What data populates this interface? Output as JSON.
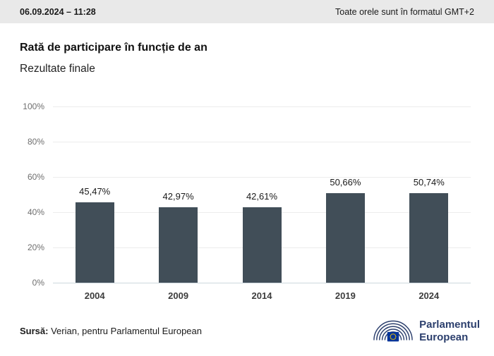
{
  "topbar": {
    "timestamp": "06.09.2024 – 11:28",
    "timezone_note": "Toate orele sunt în formatul GMT+2"
  },
  "title": "Rată de participare în funcție de an",
  "subtitle": "Rezultate finale",
  "chart_data": {
    "type": "bar",
    "title": "Rată de participare în funcție de an",
    "subtitle": "Rezultate finale",
    "categories": [
      "2004",
      "2009",
      "2014",
      "2019",
      "2024"
    ],
    "values": [
      45.47,
      42.97,
      42.61,
      50.66,
      50.74
    ],
    "value_labels": [
      "45,47%",
      "42,97%",
      "42,61%",
      "50,66%",
      "50,74%"
    ],
    "xlabel": "",
    "ylabel": "",
    "ylim": [
      0,
      100
    ],
    "yticks": [
      0,
      20,
      40,
      60,
      80,
      100
    ],
    "ytick_labels": [
      "0%",
      "20%",
      "40%",
      "60%",
      "80%",
      "100%"
    ],
    "grid": true,
    "legend": "none",
    "bar_color": "#414e58"
  },
  "footer": {
    "source_label": "Sursă:",
    "source_text": " Verian, pentru Parlamentul European",
    "logo_line1": "Parlamentul",
    "logo_line2": "European"
  },
  "colors": {
    "bar": "#414e58",
    "topbar_bg": "#e9e9e9",
    "gridline": "#ececec",
    "baseline": "#ccd7dd",
    "logo_blue": "#2c3f6d",
    "eu_flag_blue": "#003399",
    "eu_star_yellow": "#ffcc00"
  }
}
